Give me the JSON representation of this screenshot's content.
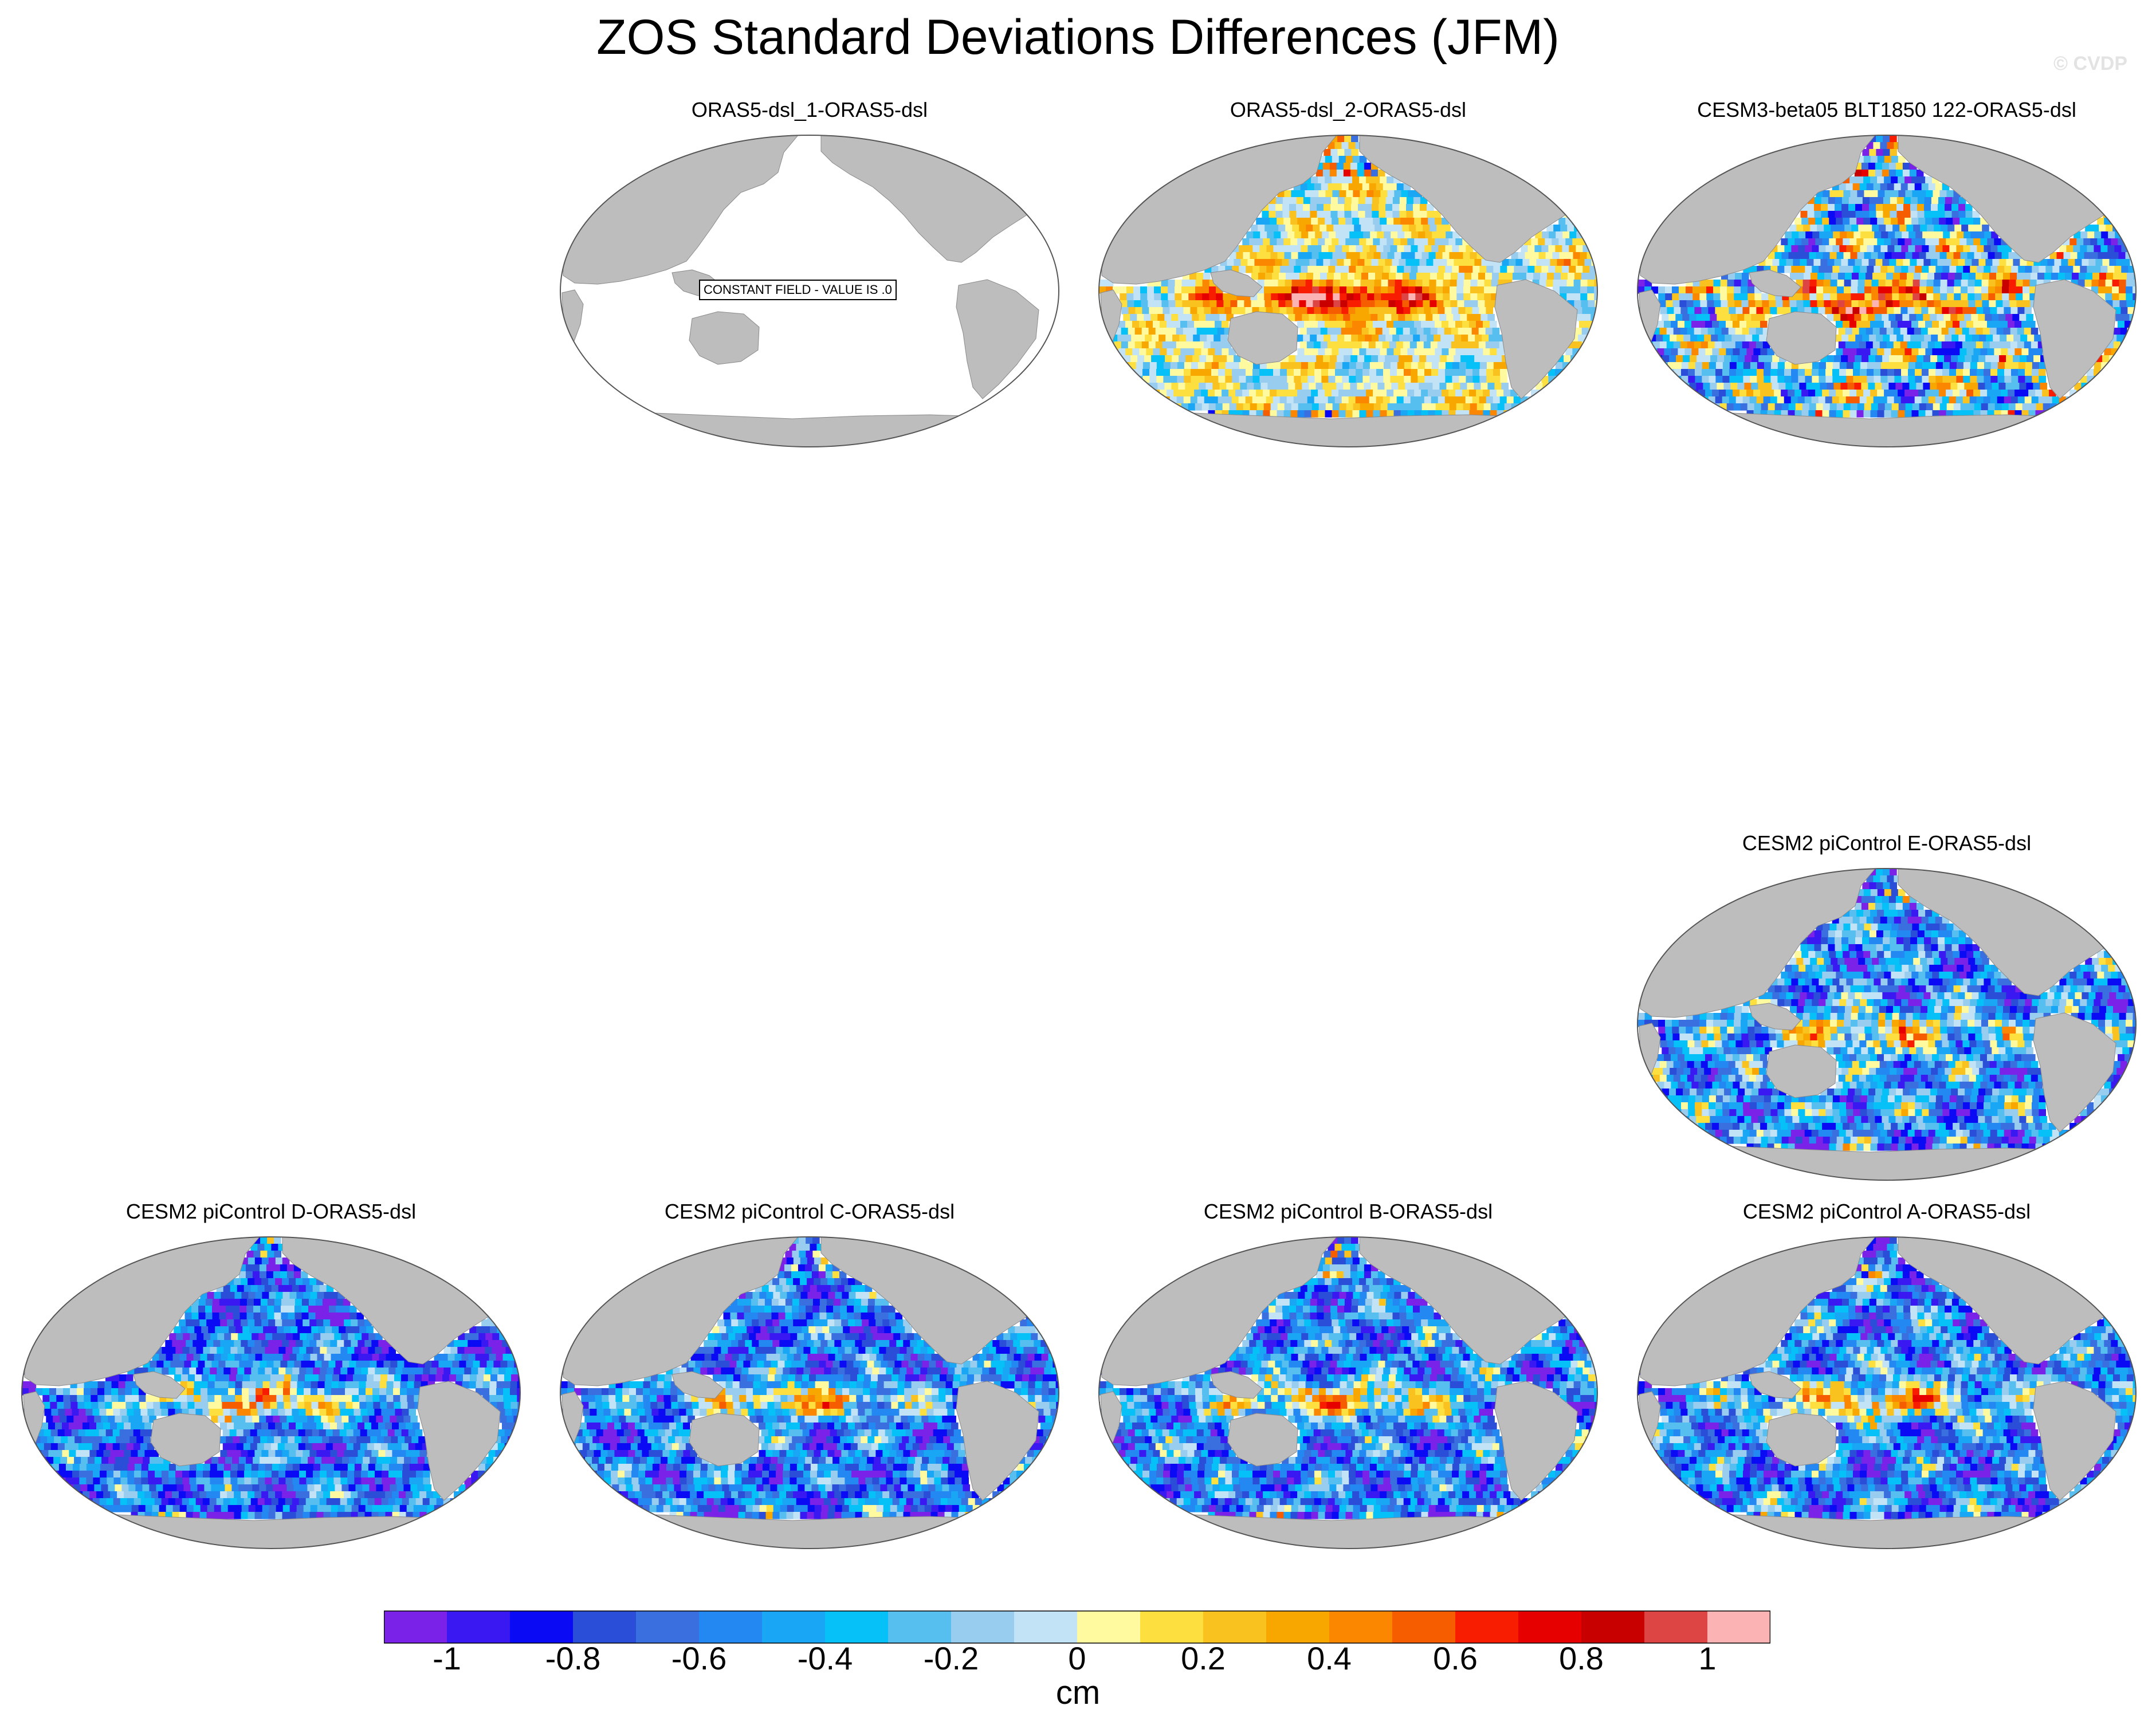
{
  "figure": {
    "title": "ZOS Standard Deviations Differences (JFM)",
    "watermark": "© CVDP",
    "colors": {
      "land": "#bdbdbd",
      "no_data_fill": "#ffffff",
      "outline": "#555555"
    }
  },
  "chart_data": {
    "type": "heatmap",
    "title": "ZOS Standard Deviations Differences (JFM)",
    "variable": "ZOS standard deviation difference",
    "season": "JFM",
    "units": "cm",
    "projection": "Robinson (Pacific-centered global map)",
    "colorbar": {
      "label": "cm",
      "tick_values": [
        -1,
        -0.8,
        -0.6,
        -0.4,
        -0.2,
        0,
        0.2,
        0.4,
        0.6,
        0.8,
        1
      ],
      "tick_labels": [
        "-1",
        "-0.8",
        "-0.6",
        "-0.4",
        "-0.2",
        "0",
        "0.2",
        "0.4",
        "0.6",
        "0.8",
        "1"
      ],
      "level_min": -1.1,
      "level_step": 0.1,
      "colors": [
        "#7b22e8",
        "#3a18f2",
        "#0a0af5",
        "#2a4ed8",
        "#3a6fe0",
        "#2388f2",
        "#18a6f5",
        "#06c0f8",
        "#56bff0",
        "#98cdef",
        "#c2e2f6",
        "#fffaa0",
        "#fde040",
        "#f9c21e",
        "#f7a700",
        "#fb8600",
        "#f55d00",
        "#f81d00",
        "#e60000",
        "#c80000",
        "#dd4444",
        "#fcb3b3"
      ]
    },
    "panels": [
      {
        "id": "p1",
        "title": "ORAS5-dsl_1-ORAS5-dsl",
        "constant": true,
        "note": "CONSTANT FIELD - VALUE IS .0",
        "pattern": {
          "seed": 1,
          "bias": 0,
          "spread": 0,
          "enso": 0
        }
      },
      {
        "id": "p2",
        "title": "ORAS5-dsl_2-ORAS5-dsl",
        "constant": false,
        "pattern": {
          "seed": 7,
          "bias": 0.0,
          "spread": 0.28,
          "enso": 1.0
        }
      },
      {
        "id": "p3",
        "title": "CESM3-beta05 BLT1850 122-ORAS5-dsl",
        "constant": false,
        "pattern": {
          "seed": 13,
          "bias": -0.25,
          "spread": 0.55,
          "enso": 0.9
        }
      },
      {
        "id": "p4",
        "title": "CESM2 piControl E-ORAS5-dsl",
        "constant": false,
        "pattern": {
          "seed": 19,
          "bias": -0.5,
          "spread": 0.45,
          "enso": 0.8
        }
      },
      {
        "id": "p5",
        "title": "CESM2 piControl D-ORAS5-dsl",
        "constant": false,
        "pattern": {
          "seed": 23,
          "bias": -0.6,
          "spread": 0.4,
          "enso": 1.0
        }
      },
      {
        "id": "p6",
        "title": "CESM2 piControl C-ORAS5-dsl",
        "constant": false,
        "pattern": {
          "seed": 29,
          "bias": -0.6,
          "spread": 0.4,
          "enso": 1.0
        }
      },
      {
        "id": "p7",
        "title": "CESM2 piControl B-ORAS5-dsl",
        "constant": false,
        "pattern": {
          "seed": 31,
          "bias": -0.55,
          "spread": 0.42,
          "enso": 1.0
        }
      },
      {
        "id": "p8",
        "title": "CESM2 piControl A-ORAS5-dsl",
        "constant": false,
        "pattern": {
          "seed": 37,
          "bias": -0.55,
          "spread": 0.42,
          "enso": 1.0
        }
      }
    ]
  }
}
